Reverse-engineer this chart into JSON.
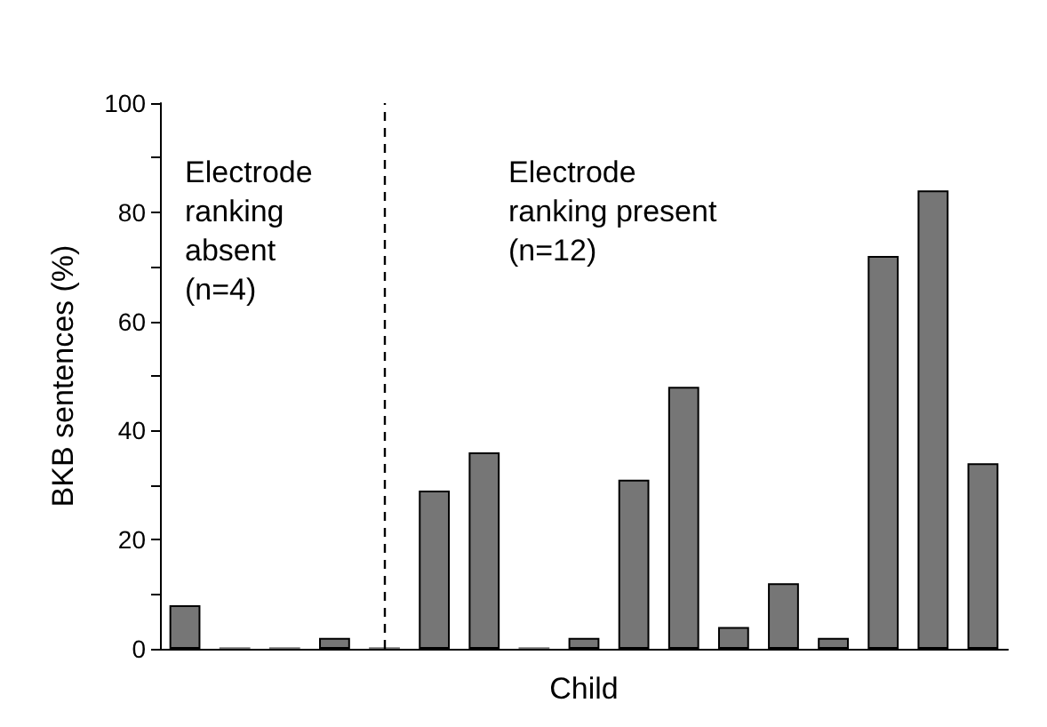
{
  "chart_data": {
    "type": "bar",
    "xlabel": "Child",
    "ylabel": "BKB sentences (%)",
    "categories": [
      null,
      null,
      null,
      null,
      null,
      null,
      null,
      null,
      null,
      null,
      null,
      null,
      null,
      null,
      null,
      null,
      null
    ],
    "values": [
      8,
      0.3,
      0.3,
      2,
      0.3,
      29,
      36,
      0.3,
      2,
      31,
      48,
      4,
      12,
      2,
      72,
      84,
      34
    ],
    "color": "#767676",
    "ylim": [
      0,
      100
    ],
    "yticks": [
      0,
      {
        "value": 10,
        "label": null
      },
      20,
      {
        "value": 30,
        "label": null
      },
      40,
      {
        "value": 50,
        "label": null
      },
      60,
      {
        "value": 70,
        "label": null
      },
      80,
      {
        "value": 90,
        "label": null
      },
      100
    ],
    "grid": false,
    "annotations": [
      "Electrode\nranking\nabsent\n(n=4)",
      "Electrode\nranking present\n(n=12)"
    ]
  }
}
